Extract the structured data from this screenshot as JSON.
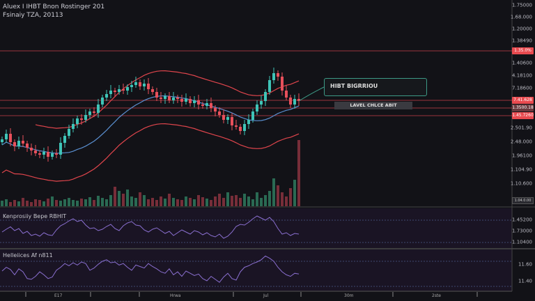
{
  "header": {
    "line1": "Aluex I IHBT Bnon Rostinger 201",
    "line2": "Fsinaiy TZA, 20113"
  },
  "annotation": {
    "box_text": "HIBT BIGRRIOU",
    "level_text": "LAVEL CHLCE ABIT"
  },
  "colors": {
    "bg": "#121217",
    "up": "#3fc4b7",
    "down": "#e8505b",
    "band": "#e0454c",
    "ma": "#5a8fd0",
    "osc": "#8a6fd0",
    "level": "#c8404a",
    "annotation": "#3d9a86"
  },
  "price_axis": [
    "1.75000",
    "1.68.000",
    "1.20000",
    "1.38490",
    "1.40600",
    "4.18100",
    "7.18600",
    "2.501.90",
    "2.48.000",
    "1.96100",
    "1.104.90",
    "1.10.600"
  ],
  "price_tags": [
    "1.35.0%",
    "7.41.628",
    "1.3500.18",
    "1.45.7260"
  ],
  "axis_badge": "1.04.0.00",
  "panels": [
    {
      "label": "Kenprosiiy Bepe RBHIT",
      "ticks": [
        "1.45200",
        "1.73000",
        "1.10400"
      ]
    },
    {
      "label": "Helleiices Af n811",
      "ticks": [
        "11.60",
        "11.40"
      ]
    }
  ],
  "x_axis": [
    "E17",
    "Hrwa",
    "Jul",
    "30m",
    "2ste"
  ],
  "chart_data": {
    "type": "candlestick",
    "title": "",
    "close": [
      100,
      108,
      96,
      90,
      98,
      94,
      88,
      84,
      80,
      78,
      82,
      75,
      80,
      78,
      95,
      105,
      115,
      122,
      130,
      128,
      135,
      140,
      138,
      150,
      160,
      165,
      170,
      168,
      172,
      170,
      175,
      178,
      182,
      176,
      180,
      172,
      168,
      160,
      158,
      162,
      156,
      160,
      158,
      154,
      158,
      152,
      156,
      150,
      148,
      152,
      145,
      140,
      135,
      128,
      132,
      120,
      118,
      112,
      122,
      128,
      140,
      150,
      155,
      168,
      185,
      195,
      190,
      170,
      160,
      150,
      158,
      155
    ],
    "volume": [
      8,
      10,
      6,
      9,
      7,
      12,
      8,
      6,
      10,
      9,
      7,
      11,
      14,
      9,
      8,
      10,
      12,
      9,
      8,
      11,
      10,
      13,
      9,
      15,
      12,
      10,
      16,
      28,
      22,
      18,
      24,
      14,
      12,
      20,
      16,
      10,
      12,
      9,
      14,
      11,
      18,
      12,
      10,
      9,
      14,
      12,
      10,
      16,
      13,
      11,
      9,
      14,
      18,
      12,
      20,
      15,
      16,
      12,
      18,
      14,
      10,
      20,
      12,
      16,
      22,
      40,
      30,
      20,
      14,
      26,
      38,
      95
    ],
    "osc1": [
      40,
      48,
      55,
      44,
      50,
      36,
      42,
      30,
      34,
      28,
      38,
      32,
      30,
      46,
      58,
      64,
      72,
      78,
      70,
      74,
      60,
      50,
      52,
      44,
      48,
      56,
      62,
      50,
      44,
      58,
      66,
      70,
      60,
      58,
      46,
      40,
      48,
      52,
      44,
      36,
      42,
      30,
      38,
      46,
      40,
      34,
      44,
      40,
      32,
      38,
      30,
      26,
      34,
      22,
      28,
      40,
      56,
      62,
      60,
      68,
      78,
      86,
      80,
      74,
      82,
      70,
      50,
      34,
      38,
      30,
      36,
      34
    ],
    "osc2": [
      50,
      60,
      54,
      40,
      56,
      48,
      30,
      28,
      36,
      48,
      40,
      30,
      34,
      52,
      60,
      70,
      64,
      72,
      66,
      74,
      70,
      52,
      58,
      68,
      76,
      80,
      72,
      74,
      66,
      70,
      60,
      52,
      66,
      62,
      58,
      70,
      62,
      56,
      48,
      44,
      56,
      40,
      48,
      36,
      50,
      44,
      38,
      42,
      30,
      24,
      36,
      28,
      20,
      34,
      44,
      30,
      26,
      48,
      60,
      64,
      70,
      74,
      80,
      90,
      84,
      76,
      60,
      48,
      40,
      36,
      44,
      42
    ]
  }
}
